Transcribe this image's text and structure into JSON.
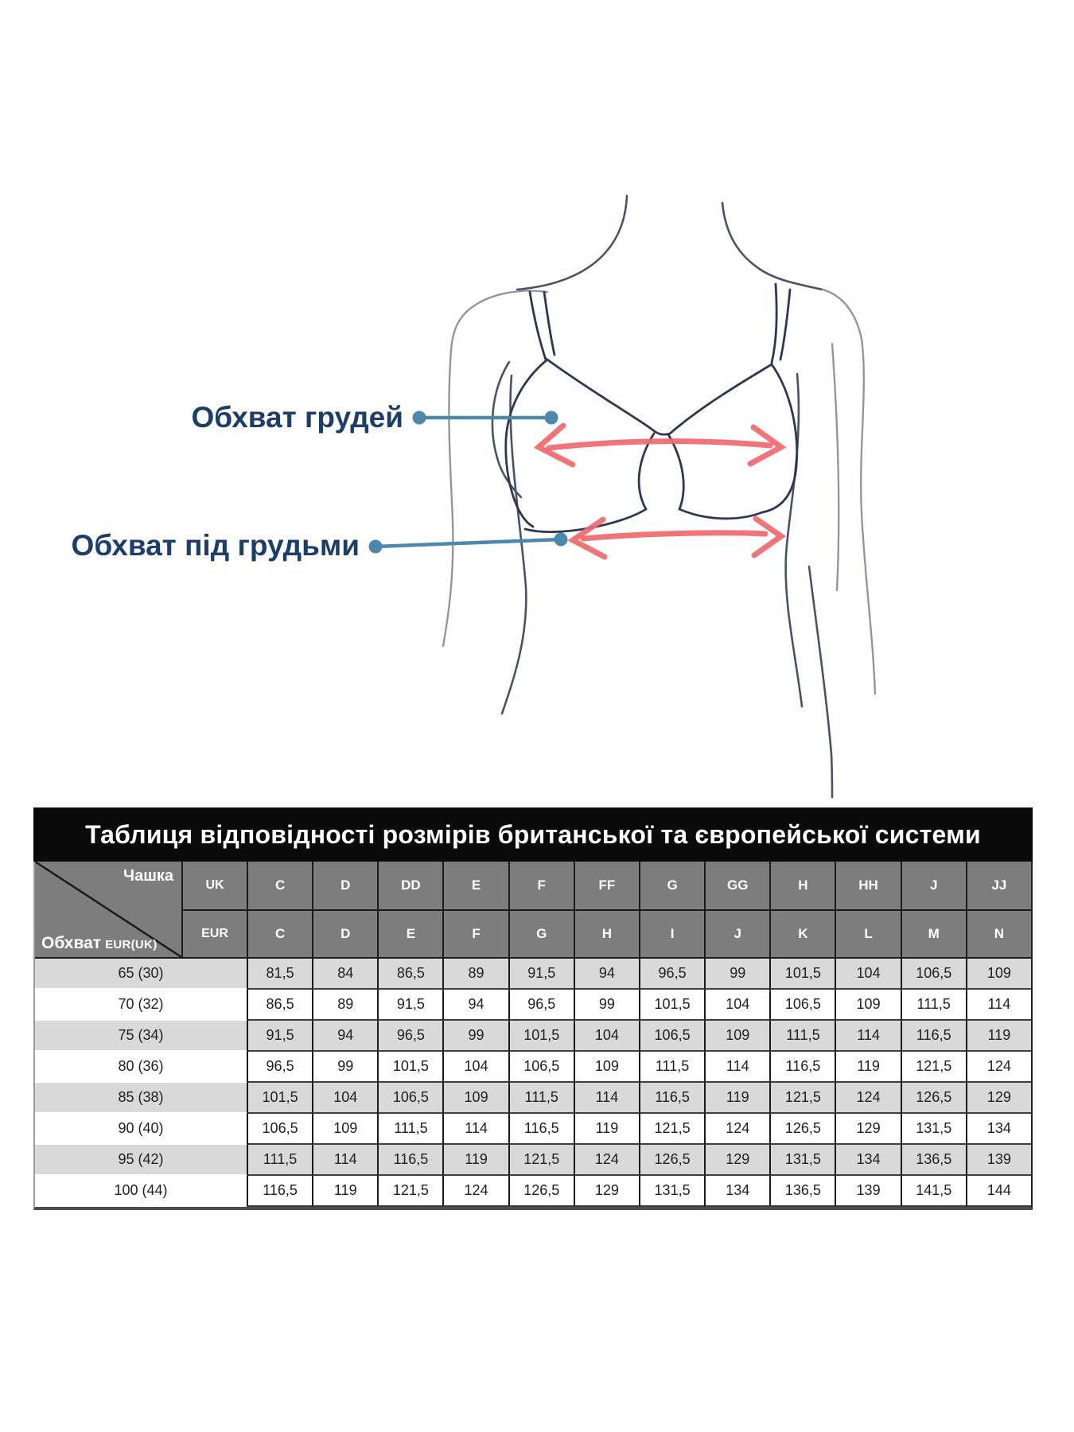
{
  "colors": {
    "label-text": "#1d3d6b",
    "leader": "#4d87ac",
    "arrow": "#f0696c",
    "body": "#4a5168",
    "body-light": "#8d93a4",
    "bra": "#2f3752",
    "header-bg": "#7d7d7d",
    "stripe": "#d9d9d9",
    "title-bg": "#0a0a0a",
    "grid-border": "#1b1b1b"
  },
  "diagram": {
    "bust_label": "Обхват грудей",
    "underbust_label": "Обхват під грудьми"
  },
  "table": {
    "title": "Таблиця відповідності розмірів британської та європейської системи",
    "corner_cup": "Чашка",
    "corner_girth": "Обхват",
    "corner_girth_units": "EUR(UK)",
    "systems": [
      "UK",
      "EUR"
    ],
    "uk_cups": [
      "C",
      "D",
      "DD",
      "E",
      "F",
      "FF",
      "G",
      "GG",
      "H",
      "HH",
      "J",
      "JJ"
    ],
    "eur_cups": [
      "C",
      "D",
      "E",
      "F",
      "G",
      "H",
      "I",
      "J",
      "K",
      "L",
      "M",
      "N"
    ],
    "rows": [
      {
        "label": "65 (30)",
        "values": [
          "81,5",
          "84",
          "86,5",
          "89",
          "91,5",
          "94",
          "96,5",
          "99",
          "101,5",
          "104",
          "106,5",
          "109"
        ]
      },
      {
        "label": "70 (32)",
        "values": [
          "86,5",
          "89",
          "91,5",
          "94",
          "96,5",
          "99",
          "101,5",
          "104",
          "106,5",
          "109",
          "111,5",
          "114"
        ]
      },
      {
        "label": "75 (34)",
        "values": [
          "91,5",
          "94",
          "96,5",
          "99",
          "101,5",
          "104",
          "106,5",
          "109",
          "111,5",
          "114",
          "116,5",
          "119"
        ]
      },
      {
        "label": "80 (36)",
        "values": [
          "96,5",
          "99",
          "101,5",
          "104",
          "106,5",
          "109",
          "111,5",
          "114",
          "116,5",
          "119",
          "121,5",
          "124"
        ]
      },
      {
        "label": "85 (38)",
        "values": [
          "101,5",
          "104",
          "106,5",
          "109",
          "111,5",
          "114",
          "116,5",
          "119",
          "121,5",
          "124",
          "126,5",
          "129"
        ]
      },
      {
        "label": "90 (40)",
        "values": [
          "106,5",
          "109",
          "111,5",
          "114",
          "116,5",
          "119",
          "121,5",
          "124",
          "126,5",
          "129",
          "131,5",
          "134"
        ]
      },
      {
        "label": "95 (42)",
        "values": [
          "111,5",
          "114",
          "116,5",
          "119",
          "121,5",
          "124",
          "126,5",
          "129",
          "131,5",
          "134",
          "136,5",
          "139"
        ]
      },
      {
        "label": "100 (44)",
        "values": [
          "116,5",
          "119",
          "121,5",
          "124",
          "126,5",
          "129",
          "131,5",
          "134",
          "136,5",
          "139",
          "141,5",
          "144"
        ]
      }
    ]
  }
}
